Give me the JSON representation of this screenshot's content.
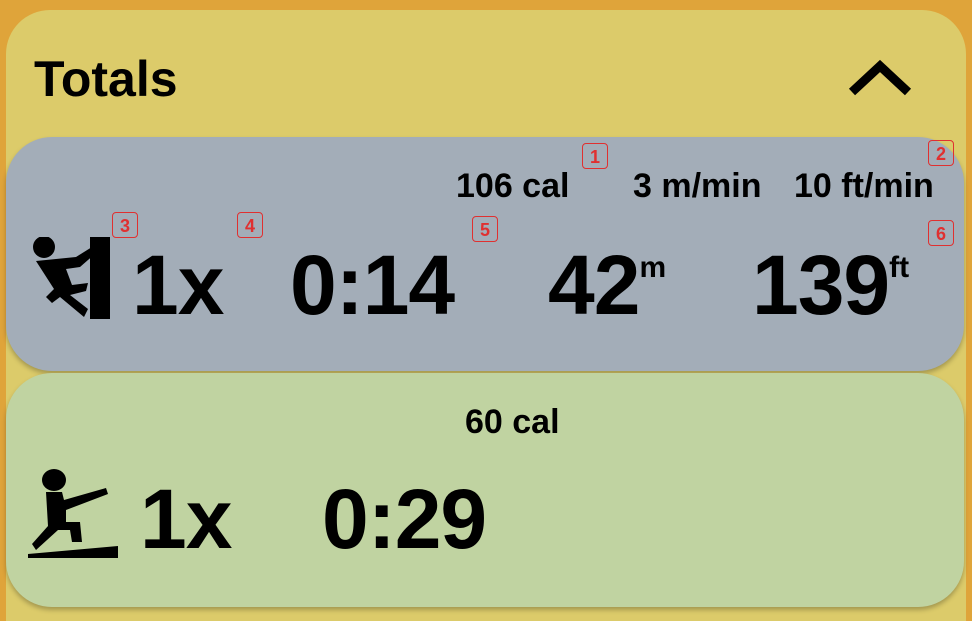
{
  "header": {
    "title": "Totals",
    "collapse_icon": "chevron-up-icon"
  },
  "climb": {
    "icon": "climbing-icon",
    "calories": "106 cal",
    "rate_m": "3 m/min",
    "rate_ft": "10 ft/min",
    "count": "1x",
    "time": "0:14",
    "meters": "42",
    "meters_unit": "m",
    "feet": "139",
    "feet_unit": "ft"
  },
  "treadmill": {
    "icon": "incline-treadmill-icon",
    "calories": "60 cal",
    "count": "1x",
    "time": "0:29"
  },
  "marks": [
    "1",
    "2",
    "3",
    "4",
    "5",
    "6"
  ],
  "colors": {
    "background": "#dfa43a",
    "card": "#dccb6a",
    "climb_row": "#a3adb8",
    "treadmill_row": "#c0d3a1",
    "mark": "#e03030"
  }
}
